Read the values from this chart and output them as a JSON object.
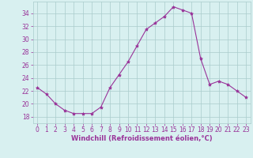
{
  "x": [
    0,
    1,
    2,
    3,
    4,
    5,
    6,
    7,
    8,
    9,
    10,
    11,
    12,
    13,
    14,
    15,
    16,
    17,
    18,
    19,
    20,
    21,
    22,
    23
  ],
  "y": [
    22.5,
    21.5,
    20.0,
    19.0,
    18.5,
    18.5,
    18.5,
    19.5,
    22.5,
    24.5,
    26.5,
    29.0,
    31.5,
    32.5,
    33.5,
    35.0,
    34.5,
    34.0,
    27.0,
    23.0,
    23.5,
    23.0,
    22.0,
    21.0
  ],
  "line_color": "#993399",
  "marker": "*",
  "marker_size": 3,
  "background_color": "#d8f0f0",
  "grid_color": "#aacccc",
  "xlabel": "Windchill (Refroidissement éolien,°C)",
  "xlim": [
    -0.5,
    23.5
  ],
  "ylim": [
    17.0,
    35.8
  ],
  "yticks": [
    18,
    20,
    22,
    24,
    26,
    28,
    30,
    32,
    34
  ],
  "xticks": [
    0,
    1,
    2,
    3,
    4,
    5,
    6,
    7,
    8,
    9,
    10,
    11,
    12,
    13,
    14,
    15,
    16,
    17,
    18,
    19,
    20,
    21,
    22,
    23
  ],
  "tick_color": "#993399",
  "label_color": "#993399",
  "font_size": 5.5,
  "xlabel_fontsize": 6.0,
  "linewidth": 0.8
}
